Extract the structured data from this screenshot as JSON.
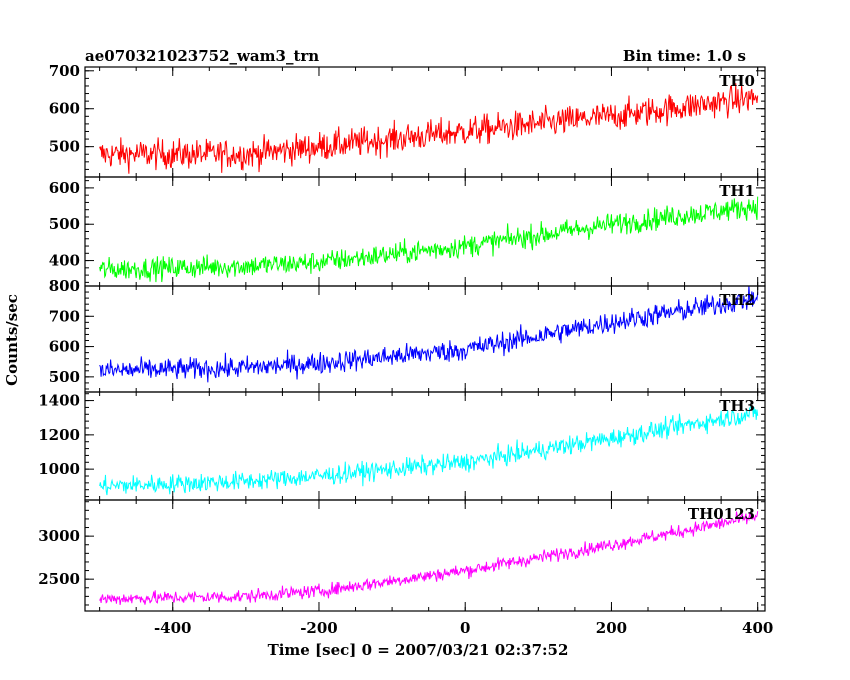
{
  "header": {
    "title": "ae070321023752_wam3_trn",
    "bin_time": "Bin time: 1.0 s"
  },
  "chart_data": {
    "type": "line",
    "xlabel": "Time [sec] 0 = 2007/03/21 02:37:52",
    "ylabel": "Counts/sec",
    "xlim": [
      -520,
      410
    ],
    "x_ticks": [
      "-400",
      "-200",
      "0",
      "200",
      "400"
    ],
    "x_tick_values": [
      -400,
      -200,
      0,
      200,
      400
    ],
    "x_range": [
      -500,
      400
    ],
    "panels": [
      {
        "name": "TH0",
        "color": "#ff0000",
        "ylim": [
          420,
          710
        ],
        "ticks": [
          500,
          600,
          700
        ],
        "tick_labels": [
          "500",
          "600",
          "700"
        ],
        "trend": [
          [
            -500,
            480
          ],
          [
            -300,
            480
          ],
          [
            -200,
            500
          ],
          [
            0,
            540
          ],
          [
            200,
            580
          ],
          [
            400,
            630
          ]
        ],
        "noise": 28
      },
      {
        "name": "TH1",
        "color": "#00ff00",
        "ylim": [
          330,
          630
        ],
        "ticks": [
          400,
          500,
          600
        ],
        "tick_labels": [
          "400",
          "500",
          "600"
        ],
        "trend": [
          [
            -500,
            375
          ],
          [
            -300,
            385
          ],
          [
            -200,
            395
          ],
          [
            0,
            440
          ],
          [
            200,
            500
          ],
          [
            400,
            550
          ]
        ],
        "noise": 22
      },
      {
        "name": "TH2",
        "color": "#0000ff",
        "ylim": [
          450,
          800
        ],
        "ticks": [
          500,
          600,
          700,
          800
        ],
        "tick_labels": [
          "500",
          "600",
          "700",
          "800"
        ],
        "trend": [
          [
            -500,
            520
          ],
          [
            -300,
            530
          ],
          [
            -200,
            545
          ],
          [
            0,
            590
          ],
          [
            200,
            680
          ],
          [
            400,
            760
          ]
        ],
        "noise": 26
      },
      {
        "name": "TH3",
        "color": "#00ffff",
        "ylim": [
          820,
          1450
        ],
        "ticks": [
          1000,
          1200,
          1400
        ],
        "tick_labels": [
          "1000",
          "1200",
          "1400"
        ],
        "trend": [
          [
            -500,
            900
          ],
          [
            -300,
            930
          ],
          [
            -200,
            960
          ],
          [
            0,
            1040
          ],
          [
            200,
            1180
          ],
          [
            400,
            1330
          ]
        ],
        "noise": 40
      },
      {
        "name": "TH0123",
        "color": "#ff00ff",
        "ylim": [
          2130,
          3420
        ],
        "ticks": [
          2500,
          3000
        ],
        "tick_labels": [
          "2500",
          "3000"
        ],
        "trend": [
          [
            -500,
            2270
          ],
          [
            -300,
            2300
          ],
          [
            -200,
            2360
          ],
          [
            0,
            2600
          ],
          [
            200,
            2900
          ],
          [
            400,
            3230
          ]
        ],
        "noise": 55
      }
    ]
  }
}
